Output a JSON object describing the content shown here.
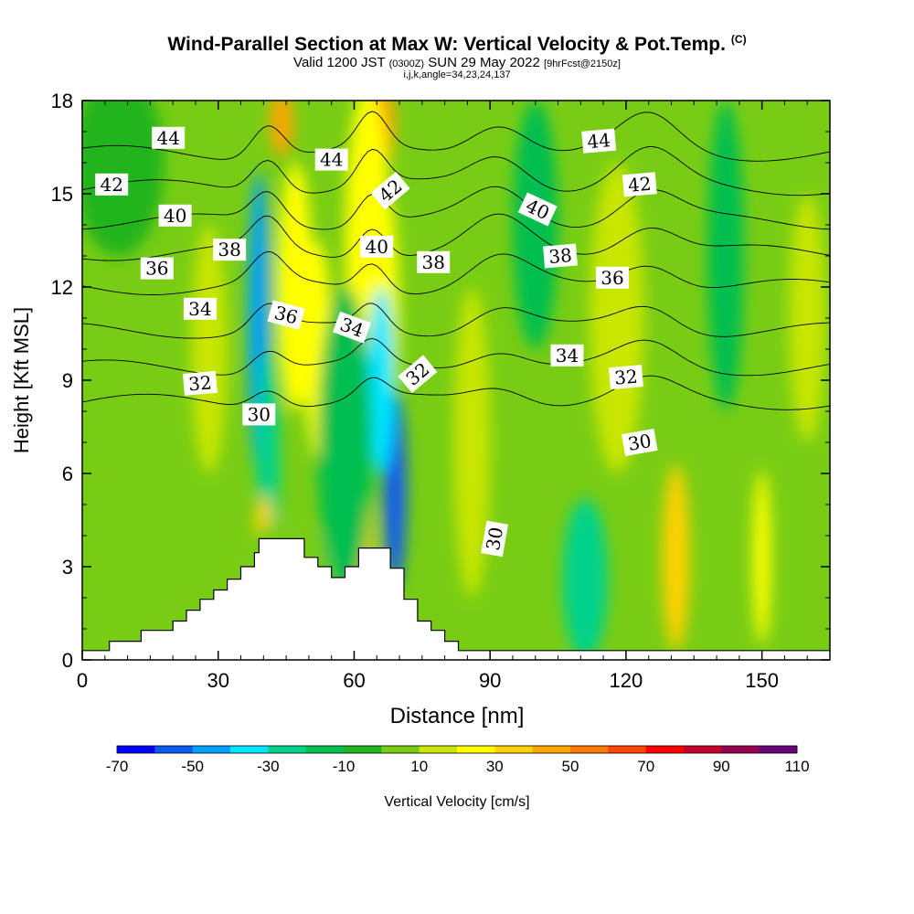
{
  "header": {
    "title": "Wind-Parallel Section at Max W: Vertical Velocity & Pot.Temp.",
    "title_mark": "(C)",
    "valid_a": "Valid 1200 JST",
    "valid_zulu": "(0300Z)",
    "valid_b": "SUN 29 May 2022",
    "fcst": "[9hrFcst@2150z]",
    "indices": "i,j,k,angle=34,23,24,137"
  },
  "chart_data": {
    "type": "heatmap",
    "title": "Wind-Parallel Section at Max W: Vertical Velocity & Pot.Temp.",
    "xlabel": "Distance [nm]",
    "ylabel": "Height [Kft MSL]",
    "xlim": [
      0,
      165
    ],
    "ylim": [
      0,
      18
    ],
    "xticks": [
      0,
      30,
      60,
      90,
      120,
      150
    ],
    "yticks": [
      0,
      3,
      6,
      9,
      12,
      15,
      18
    ],
    "colorbar": {
      "label": "Vertical Velocity [cm/s]",
      "ticks": [
        "-70",
        "-50",
        "-30",
        "-10",
        "10",
        "30",
        "50",
        "70",
        "90",
        "110"
      ],
      "levels": [
        -70,
        -60,
        -50,
        -40,
        -30,
        -20,
        -10,
        0,
        10,
        20,
        30,
        40,
        50,
        60,
        70,
        80,
        90,
        100,
        110
      ],
      "colors": [
        "#0000ff",
        "#0a5cf0",
        "#00a0ff",
        "#00e6ff",
        "#00d28c",
        "#00be50",
        "#20b41e",
        "#78cd14",
        "#c8e600",
        "#ffff00",
        "#ffd200",
        "#ffa500",
        "#ff7800",
        "#ff4600",
        "#ff0000",
        "#c8002d",
        "#960050",
        "#640078"
      ]
    },
    "terrain": {
      "x": [
        0,
        6,
        6,
        13,
        13,
        20,
        20,
        23,
        23,
        26,
        26,
        29,
        29,
        32,
        32,
        35,
        35,
        38,
        38,
        39,
        39,
        49,
        49,
        52,
        52,
        55,
        55,
        58,
        58,
        61,
        61,
        68,
        68,
        71,
        71,
        74,
        74,
        77,
        77,
        80,
        80,
        83,
        83,
        86,
        86,
        165
      ],
      "y": [
        0.3,
        0.3,
        0.6,
        0.6,
        0.95,
        0.95,
        1.25,
        1.25,
        1.6,
        1.6,
        1.95,
        1.95,
        2.25,
        2.25,
        2.6,
        2.6,
        3.0,
        3.0,
        3.45,
        3.45,
        3.9,
        3.9,
        3.3,
        3.3,
        3.0,
        3.0,
        2.65,
        2.65,
        3.0,
        3.0,
        3.6,
        3.6,
        2.95,
        2.95,
        1.95,
        1.95,
        1.25,
        1.25,
        0.95,
        0.95,
        0.6,
        0.6,
        0.3,
        0.3,
        0.3,
        0.3
      ]
    },
    "velocity_features": [
      {
        "x": 44,
        "y": 17.3,
        "w": 2.5,
        "h": 1.1,
        "v": 45
      },
      {
        "x": 47,
        "y": 12,
        "w": 4,
        "h": 4,
        "v": 28
      },
      {
        "x": 52,
        "y": 10,
        "w": 3,
        "h": 3.5,
        "v": 22
      },
      {
        "x": 39,
        "y": 10.9,
        "w": 2.4,
        "h": 4.8,
        "v": -48
      },
      {
        "x": 41,
        "y": 6.5,
        "w": 2.5,
        "h": 3.5,
        "v": -30
      },
      {
        "x": 40,
        "y": 3.8,
        "w": 2,
        "h": 1.5,
        "v": 35
      },
      {
        "x": 45,
        "y": 2.0,
        "w": 12,
        "h": 2.5,
        "v": 5
      },
      {
        "x": 66,
        "y": 17.2,
        "w": 3,
        "h": 1.4,
        "v": 45
      },
      {
        "x": 63,
        "y": 13.5,
        "w": 5,
        "h": 5,
        "v": 28
      },
      {
        "x": 67,
        "y": 11,
        "w": 3,
        "h": 4,
        "v": 22
      },
      {
        "x": 69,
        "y": 5.5,
        "w": 2.5,
        "h": 3.2,
        "v": -55
      },
      {
        "x": 66,
        "y": 9,
        "w": 3,
        "h": 3,
        "v": -32
      },
      {
        "x": 62,
        "y": 4.2,
        "w": 2,
        "h": 1.6,
        "v": 35
      },
      {
        "x": 86,
        "y": 7,
        "w": 4,
        "h": 5,
        "v": 18
      },
      {
        "x": 58,
        "y": 7,
        "w": 6,
        "h": 5,
        "v": -12
      },
      {
        "x": 111,
        "y": 2.6,
        "w": 5,
        "h": 2.6,
        "v": -22
      },
      {
        "x": 118,
        "y": 11,
        "w": 6,
        "h": 5,
        "v": 18
      },
      {
        "x": 131,
        "y": 3.3,
        "w": 3,
        "h": 3,
        "v": 32
      },
      {
        "x": 150,
        "y": 3.3,
        "w": 2,
        "h": 2.8,
        "v": 28
      },
      {
        "x": 160,
        "y": 11,
        "w": 4,
        "h": 4,
        "v": 15
      },
      {
        "x": 28,
        "y": 10,
        "w": 4,
        "h": 4,
        "v": 15
      },
      {
        "x": 142,
        "y": 13,
        "w": 4,
        "h": 5,
        "v": -12
      },
      {
        "x": 100,
        "y": 14,
        "w": 5,
        "h": 4,
        "v": -12
      },
      {
        "x": 8,
        "y": 16,
        "w": 10,
        "h": 3,
        "v": -8
      }
    ],
    "theta_contours": [
      {
        "label": "30",
        "y0": 8.3,
        "bump": 0.6
      },
      {
        "label": "32",
        "y0": 9.4,
        "bump": 0.7
      },
      {
        "label": "34",
        "y0": 10.6,
        "bump": 0.8
      },
      {
        "label": "36",
        "y0": 12.0,
        "bump": 0.9
      },
      {
        "label": "38",
        "y0": 13.1,
        "bump": 1.0
      },
      {
        "label": "40",
        "y0": 14.1,
        "bump": 1.0
      },
      {
        "label": "42",
        "y0": 15.2,
        "bump": 1.1
      },
      {
        "label": "44",
        "y0": 16.3,
        "bump": 1.1
      }
    ],
    "contour_labels": [
      {
        "text": "44",
        "x": 19,
        "y": 16.8,
        "angle": 0
      },
      {
        "text": "44",
        "x": 55,
        "y": 16.1,
        "angle": 0
      },
      {
        "text": "44",
        "x": 114,
        "y": 16.7,
        "angle": -5
      },
      {
        "text": "42",
        "x": 6.5,
        "y": 15.3,
        "angle": 0
      },
      {
        "text": "42",
        "x": 68,
        "y": 15.1,
        "angle": -40
      },
      {
        "text": "42",
        "x": 123,
        "y": 15.3,
        "angle": -5
      },
      {
        "text": "40",
        "x": 20.5,
        "y": 14.3,
        "angle": 0
      },
      {
        "text": "40",
        "x": 100.5,
        "y": 14.5,
        "angle": 25
      },
      {
        "text": "40",
        "x": 65,
        "y": 13.3,
        "angle": 0
      },
      {
        "text": "38",
        "x": 32.5,
        "y": 13.2,
        "angle": 0
      },
      {
        "text": "38",
        "x": 77.5,
        "y": 12.8,
        "angle": 0
      },
      {
        "text": "38",
        "x": 105.5,
        "y": 13.0,
        "angle": -5
      },
      {
        "text": "36",
        "x": 16.5,
        "y": 12.6,
        "angle": 0
      },
      {
        "text": "36",
        "x": 45,
        "y": 11.1,
        "angle": 15
      },
      {
        "text": "36",
        "x": 117,
        "y": 12.3,
        "angle": 0
      },
      {
        "text": "34",
        "x": 26,
        "y": 11.3,
        "angle": 0
      },
      {
        "text": "34",
        "x": 59.5,
        "y": 10.7,
        "angle": 20
      },
      {
        "text": "34",
        "x": 107,
        "y": 9.8,
        "angle": 0
      },
      {
        "text": "32",
        "x": 26,
        "y": 8.9,
        "angle": -5
      },
      {
        "text": "32",
        "x": 74,
        "y": 9.2,
        "angle": -40
      },
      {
        "text": "32",
        "x": 120,
        "y": 9.1,
        "angle": -5
      },
      {
        "text": "30",
        "x": 39,
        "y": 7.9,
        "angle": 0
      },
      {
        "text": "30",
        "x": 91,
        "y": 3.9,
        "angle": -80
      },
      {
        "text": "30",
        "x": 123,
        "y": 7.0,
        "angle": -10
      }
    ]
  }
}
